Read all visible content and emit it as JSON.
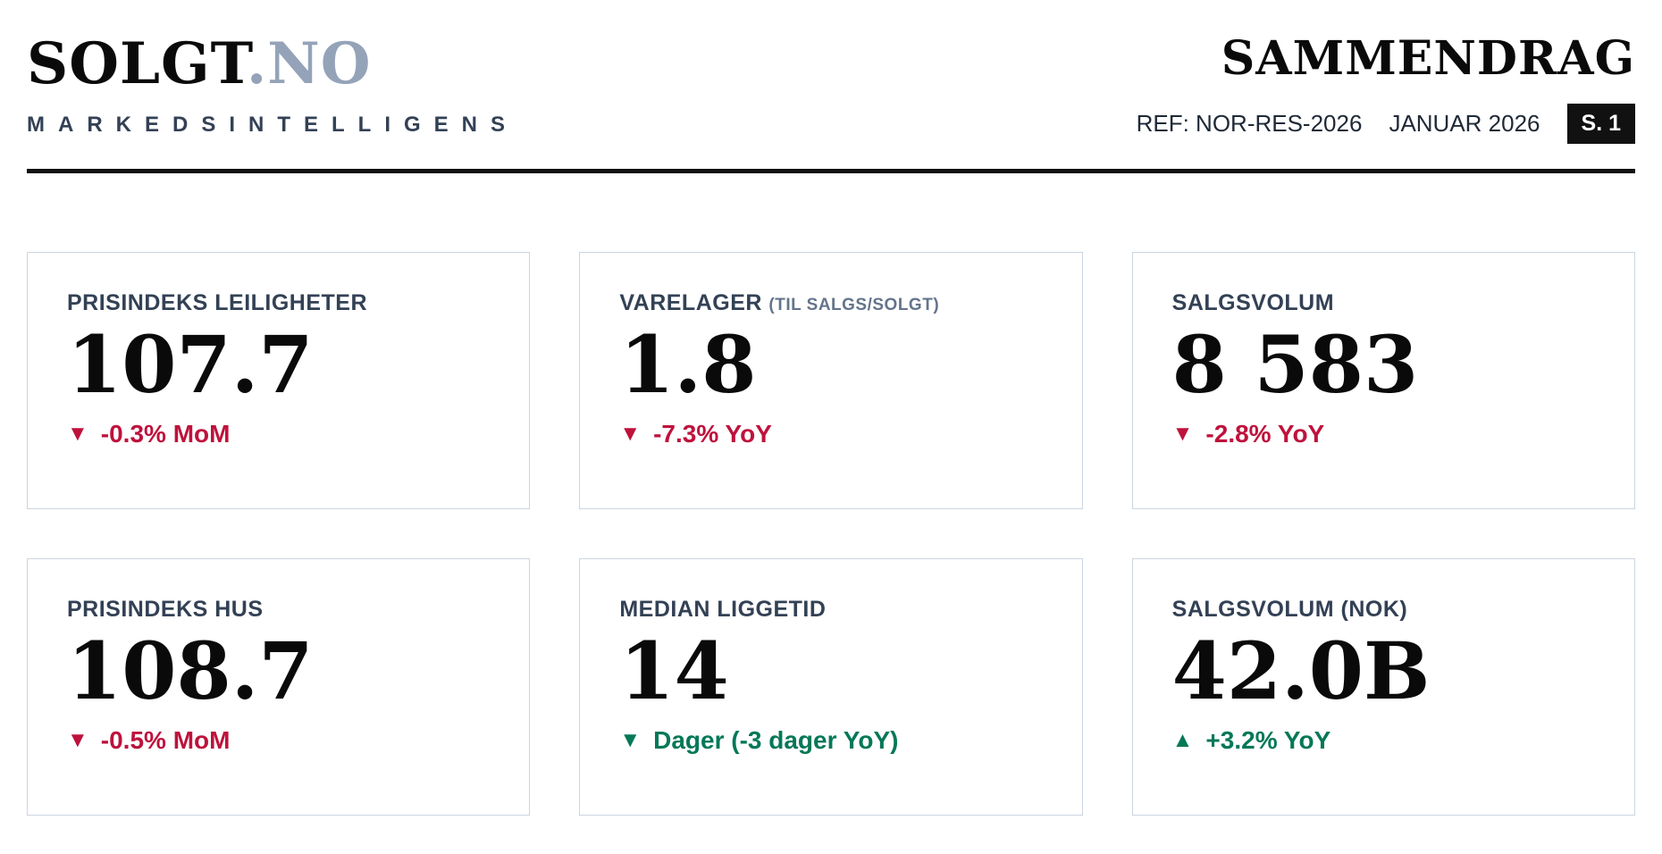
{
  "header": {
    "logo_primary": "SOLGT",
    "logo_secondary": ".NO",
    "tagline": "MARKEDSINTELLIGENS",
    "report_title": "SAMMENDRAG",
    "ref": "REF: NOR-RES-2026",
    "date": "JANUAR 2026",
    "page_badge": "S. 1"
  },
  "colors": {
    "negative": "#be123c",
    "positive": "#047857",
    "label": "#334155",
    "logo_secondary": "#94a3b8",
    "card_border": "#cbd5e1",
    "badge_bg": "#111111"
  },
  "cards": [
    {
      "label": "PRISINDEKS LEILIGHETER",
      "sublabel": "",
      "value": "107.7",
      "delta_icon": "▼",
      "delta_text": "-0.3% MoM",
      "trend": "negative"
    },
    {
      "label": "VARELAGER",
      "sublabel": "(TIL SALGS/SOLGT)",
      "value": "1.8",
      "delta_icon": "▼",
      "delta_text": "-7.3% YoY",
      "trend": "negative"
    },
    {
      "label": "SALGSVOLUM",
      "sublabel": "",
      "value": "8 583",
      "delta_icon": "▼",
      "delta_text": "-2.8% YoY",
      "trend": "negative"
    },
    {
      "label": "PRISINDEKS HUS",
      "sublabel": "",
      "value": "108.7",
      "delta_icon": "▼",
      "delta_text": "-0.5% MoM",
      "trend": "negative"
    },
    {
      "label": "MEDIAN LIGGETID",
      "sublabel": "",
      "value": "14",
      "delta_icon": "▼",
      "delta_text": "Dager (-3 dager YoY)",
      "trend": "positive"
    },
    {
      "label": "SALGSVOLUM (NOK)",
      "sublabel": "",
      "value": "42.0B",
      "delta_icon": "▲",
      "delta_text": "+3.2% YoY",
      "trend": "positive"
    }
  ]
}
